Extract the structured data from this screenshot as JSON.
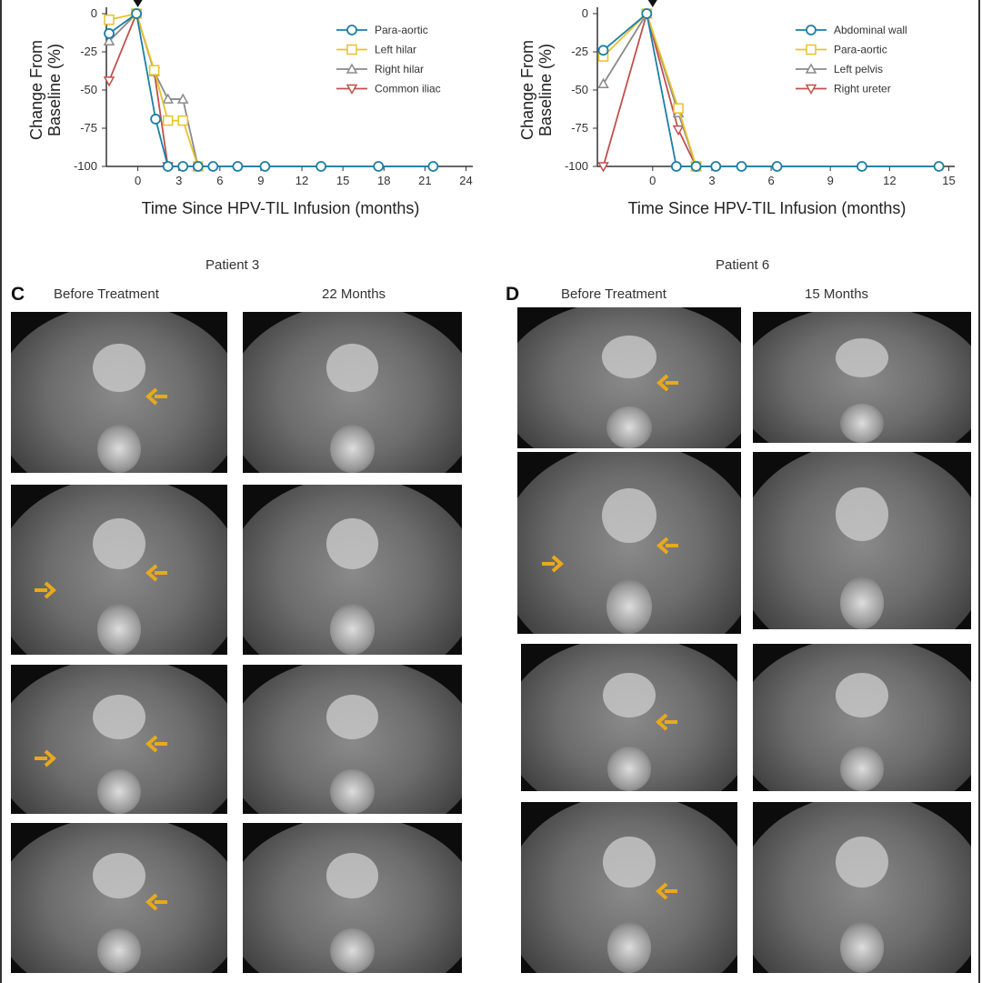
{
  "panel_c": {
    "patient": "Patient 3",
    "letter": "C",
    "col1": "Before Treatment",
    "col2": "22 Months"
  },
  "panel_d": {
    "patient": "Patient 6",
    "letter": "D",
    "col1": "Before Treatment",
    "col2": "15 Months"
  },
  "colors": {
    "blue": "#1b7fa6",
    "yellow": "#e8c22a",
    "gray": "#8a8a8a",
    "red": "#c0504d",
    "arrow": "#e8a91c",
    "arrowhead": "#e02020"
  },
  "chart_data": [
    {
      "type": "line",
      "xlabel": "Time Since HPV-TIL Infusion (months)",
      "ylabel": "Change From Baseline (%)",
      "xlim": [
        -2.3,
        24.5
      ],
      "ylim": [
        -100,
        0
      ],
      "xticks": [
        0,
        3,
        6,
        9,
        12,
        15,
        18,
        21,
        24
      ],
      "yticks": [
        0,
        -25,
        -50,
        -75,
        -100
      ],
      "legend": "top-right",
      "marker_at_x": 0,
      "series": [
        {
          "name": "Para-aortic",
          "color": "#1b7fa6",
          "marker": "circle",
          "x": [
            -2.1,
            -0.1,
            1.3,
            2.2,
            3.3,
            4.4,
            5.5,
            7.3,
            9.3,
            13.4,
            17.6,
            21.6
          ],
          "y": [
            -13,
            0,
            -69,
            -100,
            -100,
            -100,
            -100,
            -100,
            -100,
            -100,
            -100,
            -100
          ]
        },
        {
          "name": "Left hilar",
          "color": "#e8c22a",
          "marker": "square",
          "x": [
            -2.1,
            -0.1,
            1.2,
            2.2,
            3.3,
            4.4
          ],
          "y": [
            -4,
            0,
            -37,
            -70,
            -70,
            -100
          ]
        },
        {
          "name": "Right hilar",
          "color": "#8a8a8a",
          "marker": "triangle-up",
          "x": [
            -2.1,
            -0.1,
            1.2,
            2.2,
            3.3,
            4.4
          ],
          "y": [
            -18,
            0,
            -38,
            -56,
            -56,
            -100
          ]
        },
        {
          "name": "Common iliac",
          "color": "#c0504d",
          "marker": "triangle-down",
          "x": [
            -2.1,
            -0.1,
            1.2,
            2.2
          ],
          "y": [
            -44,
            0,
            -38,
            -100
          ]
        }
      ]
    },
    {
      "type": "line",
      "xlabel": "Time Since HPV-TIL Infusion (months)",
      "ylabel": "Change From Baseline (%)",
      "xlim": [
        -2.8,
        15.3
      ],
      "ylim": [
        -100,
        0
      ],
      "xticks": [
        0,
        3,
        6,
        9,
        12,
        15
      ],
      "yticks": [
        0,
        -25,
        -50,
        -75,
        -100
      ],
      "legend": "top-right",
      "marker_at_x": 0,
      "series": [
        {
          "name": "Abdominal wall",
          "color": "#1b7fa6",
          "marker": "circle",
          "x": [
            -2.5,
            -0.3,
            1.2,
            2.2,
            3.2,
            4.5,
            6.3,
            10.6,
            14.5
          ],
          "y": [
            -24,
            0,
            -100,
            -100,
            -100,
            -100,
            -100,
            -100,
            -100
          ]
        },
        {
          "name": "Para-aortic",
          "color": "#e8c22a",
          "marker": "square",
          "x": [
            -2.5,
            -0.3,
            1.3,
            2.2
          ],
          "y": [
            -28,
            0,
            -62,
            -100
          ]
        },
        {
          "name": "Left pelvis",
          "color": "#8a8a8a",
          "marker": "triangle-up",
          "x": [
            -2.5,
            -0.3,
            1.3,
            2.2
          ],
          "y": [
            -46,
            0,
            -65,
            -100
          ]
        },
        {
          "name": "Right ureter",
          "color": "#c0504d",
          "marker": "triangle-down",
          "x": [
            -2.5,
            -0.3,
            1.3,
            2.2
          ],
          "y": [
            -100,
            0,
            -76,
            -100
          ]
        }
      ]
    }
  ]
}
